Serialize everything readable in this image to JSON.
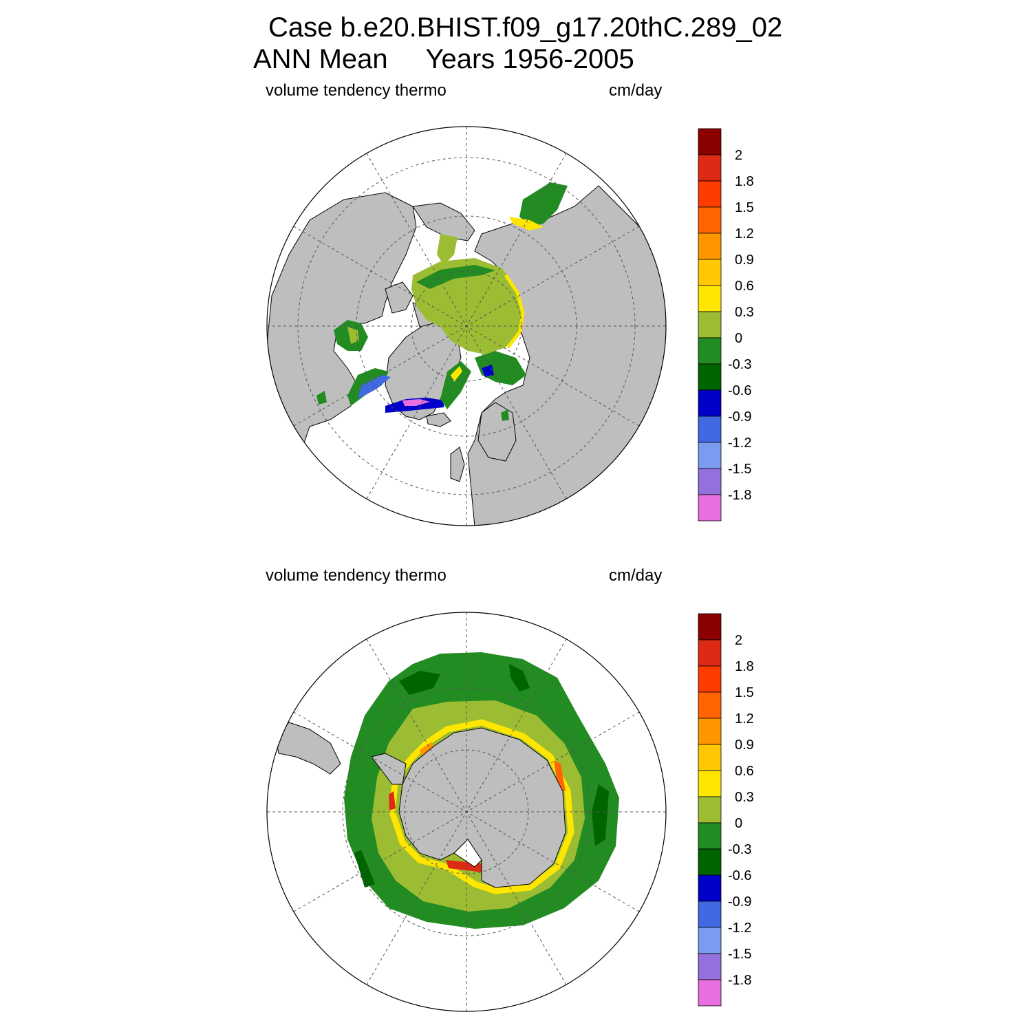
{
  "figure": {
    "title_line1": "Case b.e20.BHIST.f09_g17.20thC.289_02",
    "title_line2": "ANN Mean     Years 1956-2005"
  },
  "panels": [
    {
      "id": "north",
      "hemisphere": "Arctic (North Polar Stereographic)",
      "left_label": "volume tendency thermo",
      "right_label": "cm/day"
    },
    {
      "id": "south",
      "hemisphere": "Antarctic (South Polar Stereographic)",
      "left_label": "volume tendency thermo",
      "right_label": "cm/day"
    }
  ],
  "colorbar": {
    "tick_labels": [
      "2",
      "1.8",
      "1.5",
      "1.2",
      "0.9",
      "0.6",
      "0.3",
      "0",
      "-0.3",
      "-0.6",
      "-0.9",
      "-1.2",
      "-1.5",
      "-1.8"
    ],
    "colors": [
      "#8b0000",
      "#dc2a14",
      "#ff3c00",
      "#ff6400",
      "#ff9600",
      "#ffc800",
      "#ffe600",
      "#9cbd33",
      "#228b22",
      "#006400",
      "#0000c8",
      "#4169e1",
      "#7a9cf0",
      "#9370db",
      "#e86fe0"
    ]
  },
  "colors": {
    "land": "#bebebe",
    "ocean": "#ffffff",
    "grid": "#555555"
  }
}
